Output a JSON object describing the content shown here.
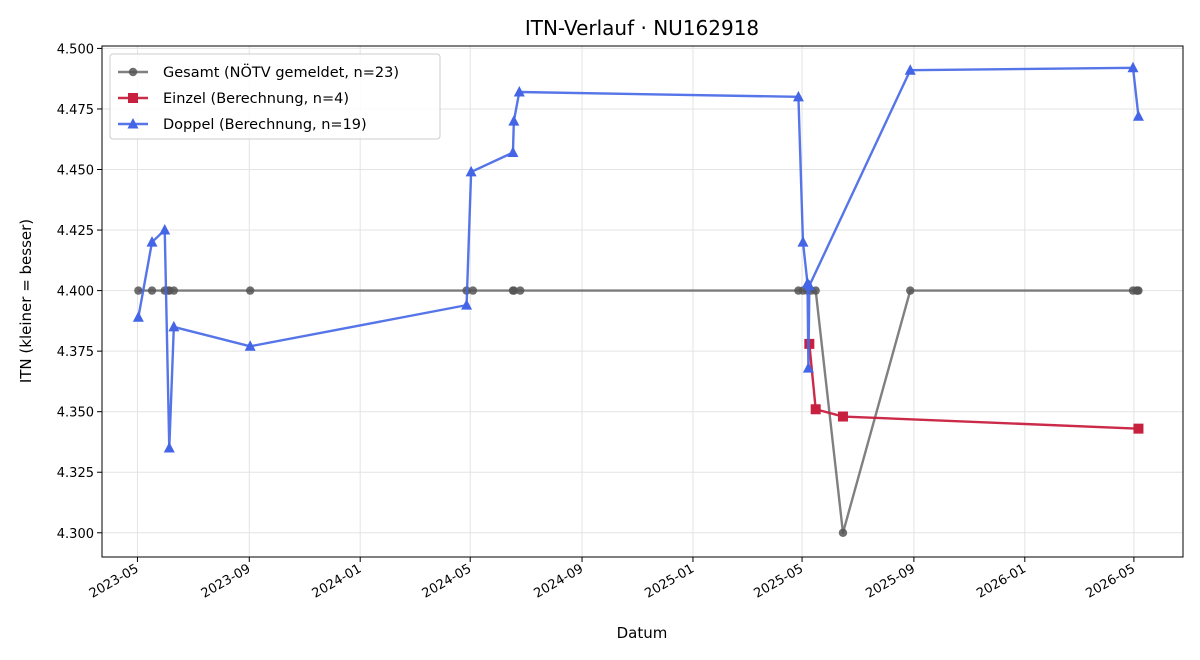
{
  "chart_data": {
    "type": "line",
    "title": "ITN-Verlauf · NU162918",
    "xlabel": "Datum",
    "ylabel": "ITN  (kleiner = besser)",
    "x_type": "date",
    "xlim": [
      "2023-03-23",
      "2026-06-24"
    ],
    "ylim": [
      4.29,
      4.501
    ],
    "xticks": [
      "2023-05-01",
      "2023-09-01",
      "2024-01-01",
      "2024-05-01",
      "2024-09-01",
      "2025-01-01",
      "2025-05-01",
      "2025-09-01",
      "2026-01-01",
      "2026-05-01"
    ],
    "xtick_labels": [
      "2023-05",
      "2023-09",
      "2024-01",
      "2024-05",
      "2024-09",
      "2025-01",
      "2025-05",
      "2025-09",
      "2026-01",
      "2026-05"
    ],
    "yticks": [
      4.3,
      4.325,
      4.35,
      4.375,
      4.4,
      4.425,
      4.45,
      4.475,
      4.5
    ],
    "ytick_labels": [
      "4.300",
      "4.325",
      "4.350",
      "4.375",
      "4.400",
      "4.425",
      "4.450",
      "4.475",
      "4.500"
    ],
    "grid": true,
    "legend_position": "top-left",
    "series": [
      {
        "name": "Gesamt (NÖTV gemeldet, n=23)",
        "color": "#555555",
        "marker": "circle",
        "x": [
          "2023-05-02",
          "2023-05-17",
          "2023-05-31",
          "2023-06-04",
          "2023-06-05",
          "2023-06-10",
          "2023-09-02",
          "2024-04-27",
          "2024-05-04",
          "2024-06-17",
          "2024-06-18",
          "2024-06-25",
          "2025-04-27",
          "2025-05-02",
          "2025-05-07",
          "2025-05-11",
          "2025-05-16",
          "2025-06-15",
          "2025-08-28",
          "2026-04-30",
          "2026-05-04",
          "2026-05-05",
          "2026-05-06"
        ],
        "values": [
          4.4,
          4.4,
          4.4,
          4.4,
          4.4,
          4.4,
          4.4,
          4.4,
          4.4,
          4.4,
          4.4,
          4.4,
          4.4,
          4.4,
          4.4,
          4.4,
          4.4,
          4.3,
          4.4,
          4.4,
          4.4,
          4.4,
          4.4
        ]
      },
      {
        "name": "Einzel (Berechnung, n=4)",
        "color": "#c8203f",
        "marker": "square",
        "x": [
          "2025-05-09",
          "2025-05-16",
          "2025-06-15",
          "2026-05-06"
        ],
        "values": [
          4.378,
          4.351,
          4.348,
          4.343
        ]
      },
      {
        "name": "Doppel (Berechnung, n=19)",
        "color": "#4466e6",
        "marker": "triangle",
        "x": [
          "2023-05-02",
          "2023-05-17",
          "2023-05-31",
          "2023-06-05",
          "2023-06-10",
          "2023-09-02",
          "2024-04-27",
          "2024-05-02",
          "2024-06-17",
          "2024-06-18",
          "2024-06-24",
          "2025-04-27",
          "2025-05-02",
          "2025-05-07",
          "2025-05-08",
          "2025-05-09",
          "2025-08-28",
          "2026-04-30",
          "2026-05-06"
        ],
        "values": [
          4.389,
          4.42,
          4.425,
          4.335,
          4.385,
          4.377,
          4.394,
          4.449,
          4.457,
          4.47,
          4.482,
          4.48,
          4.42,
          4.403,
          4.368,
          4.402,
          4.491,
          4.492,
          4.472
        ]
      }
    ]
  }
}
